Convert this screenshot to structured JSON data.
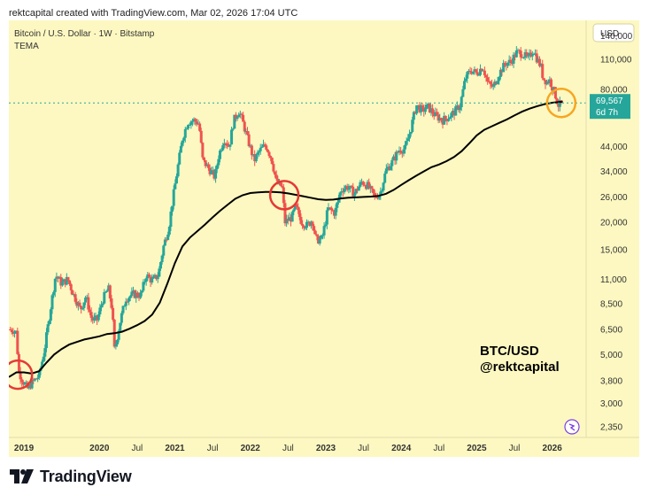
{
  "caption": "rektcapital created with TradingView.com, Mar 02, 2026 17:04 UTC",
  "logo_text": "TradingView",
  "colors": {
    "background": "#fdf8c1",
    "up": "#26a69a",
    "down": "#ef5350",
    "tema": "#000000",
    "red_circle": "#e53935",
    "orange_circle": "#f5a623",
    "price_tag": "#26a69a"
  },
  "chart_data": {
    "type": "candlestick",
    "symbol_line": "Bitcoin / U.S. Dollar · 1W · Bitstamp",
    "indicator": "TEMA",
    "currency_button": "USD",
    "watermark_lines": [
      "BTC/USD",
      "@rektcapital"
    ],
    "y_scale": "log",
    "ylim": [
      2100,
      165000
    ],
    "y_ticks": [
      140000,
      110000,
      80000,
      44000,
      34000,
      26000,
      20000,
      15000,
      11000,
      8500,
      6500,
      5000,
      3800,
      3000,
      2350
    ],
    "y_tick_labels": [
      "140,000",
      "110,000",
      "80,000",
      "44,000",
      "34,000",
      "26,000",
      "20,000",
      "15,000",
      "11,000",
      "8,500",
      "6,500",
      "5,000",
      "3,800",
      "3,000",
      "2,350"
    ],
    "xlim": [
      2018.8,
      2026.45
    ],
    "x_ticks": [
      2019.0,
      2020.0,
      2020.5,
      2021.0,
      2021.5,
      2022.0,
      2022.5,
      2023.0,
      2023.5,
      2024.0,
      2024.5,
      2025.0,
      2025.5,
      2026.0
    ],
    "x_tick_labels": [
      "2019",
      "2020",
      "Jul",
      "2021",
      "Jul",
      "2022",
      "Jul",
      "2023",
      "Jul",
      "2024",
      "Jul",
      "2025",
      "Jul",
      "2026"
    ],
    "last_price": 69567,
    "last_price_label": "69,567",
    "countdown": "6d 7h",
    "price_path": [
      [
        2018.8,
        6500
      ],
      [
        2018.87,
        6450
      ],
      [
        2018.9,
        6300
      ],
      [
        2018.93,
        4200
      ],
      [
        2018.97,
        3900
      ],
      [
        2019.0,
        3700
      ],
      [
        2019.05,
        3500
      ],
      [
        2019.1,
        3700
      ],
      [
        2019.2,
        4000
      ],
      [
        2019.27,
        5200
      ],
      [
        2019.35,
        8000
      ],
      [
        2019.42,
        11500
      ],
      [
        2019.5,
        10500
      ],
      [
        2019.58,
        11000
      ],
      [
        2019.65,
        9500
      ],
      [
        2019.75,
        8000
      ],
      [
        2019.82,
        9200
      ],
      [
        2019.9,
        7200
      ],
      [
        2019.97,
        7200
      ],
      [
        2020.05,
        9000
      ],
      [
        2020.12,
        10000
      ],
      [
        2020.17,
        8000
      ],
      [
        2020.2,
        5200
      ],
      [
        2020.28,
        7200
      ],
      [
        2020.35,
        9000
      ],
      [
        2020.45,
        9400
      ],
      [
        2020.55,
        9300
      ],
      [
        2020.62,
        11500
      ],
      [
        2020.7,
        10800
      ],
      [
        2020.78,
        11500
      ],
      [
        2020.85,
        15500
      ],
      [
        2020.92,
        19000
      ],
      [
        2020.97,
        25000
      ],
      [
        2021.03,
        34000
      ],
      [
        2021.1,
        48000
      ],
      [
        2021.17,
        57000
      ],
      [
        2021.25,
        58000
      ],
      [
        2021.32,
        56000
      ],
      [
        2021.37,
        38000
      ],
      [
        2021.45,
        35000
      ],
      [
        2021.53,
        32000
      ],
      [
        2021.58,
        40000
      ],
      [
        2021.65,
        48000
      ],
      [
        2021.72,
        44000
      ],
      [
        2021.78,
        58000
      ],
      [
        2021.85,
        64000
      ],
      [
        2021.9,
        57000
      ],
      [
        2021.97,
        47000
      ],
      [
        2022.05,
        38000
      ],
      [
        2022.12,
        42000
      ],
      [
        2022.2,
        45000
      ],
      [
        2022.28,
        39000
      ],
      [
        2022.35,
        30000
      ],
      [
        2022.42,
        29000
      ],
      [
        2022.46,
        20000
      ],
      [
        2022.55,
        21000
      ],
      [
        2022.6,
        23500
      ],
      [
        2022.68,
        20000
      ],
      [
        2022.75,
        19300
      ],
      [
        2022.82,
        20500
      ],
      [
        2022.87,
        16500
      ],
      [
        2022.95,
        16800
      ],
      [
        2023.03,
        23000
      ],
      [
        2023.12,
        22000
      ],
      [
        2023.2,
        28000
      ],
      [
        2023.28,
        29000
      ],
      [
        2023.38,
        27000
      ],
      [
        2023.48,
        30500
      ],
      [
        2023.55,
        29300
      ],
      [
        2023.65,
        26000
      ],
      [
        2023.72,
        27000
      ],
      [
        2023.8,
        34500
      ],
      [
        2023.88,
        37500
      ],
      [
        2023.97,
        42500
      ],
      [
        2024.05,
        43000
      ],
      [
        2024.12,
        52000
      ],
      [
        2024.2,
        68000
      ],
      [
        2024.28,
        64000
      ],
      [
        2024.35,
        67000
      ],
      [
        2024.45,
        61000
      ],
      [
        2024.55,
        58000
      ],
      [
        2024.62,
        60000
      ],
      [
        2024.7,
        63000
      ],
      [
        2024.78,
        68000
      ],
      [
        2024.85,
        90000
      ],
      [
        2024.92,
        98000
      ],
      [
        2025.0,
        95000
      ],
      [
        2025.08,
        102000
      ],
      [
        2025.15,
        85000
      ],
      [
        2025.22,
        82000
      ],
      [
        2025.3,
        95000
      ],
      [
        2025.38,
        105000
      ],
      [
        2025.45,
        107000
      ],
      [
        2025.53,
        118000
      ],
      [
        2025.6,
        117000
      ],
      [
        2025.68,
        110000
      ],
      [
        2025.75,
        122000
      ],
      [
        2025.8,
        110000
      ],
      [
        2025.85,
        102000
      ],
      [
        2025.88,
        90000
      ],
      [
        2025.93,
        87000
      ],
      [
        2025.97,
        88000
      ],
      [
        2026.03,
        78000
      ],
      [
        2026.08,
        68000
      ],
      [
        2026.14,
        69567
      ]
    ],
    "tema_path": [
      [
        2018.8,
        3950
      ],
      [
        2018.9,
        4150
      ],
      [
        2019.0,
        4150
      ],
      [
        2019.1,
        4100
      ],
      [
        2019.2,
        4200
      ],
      [
        2019.3,
        4600
      ],
      [
        2019.4,
        5000
      ],
      [
        2019.5,
        5300
      ],
      [
        2019.6,
        5550
      ],
      [
        2019.7,
        5700
      ],
      [
        2019.8,
        5850
      ],
      [
        2019.9,
        5950
      ],
      [
        2020.0,
        6050
      ],
      [
        2020.1,
        6200
      ],
      [
        2020.2,
        6250
      ],
      [
        2020.3,
        6350
      ],
      [
        2020.4,
        6550
      ],
      [
        2020.5,
        6800
      ],
      [
        2020.6,
        7100
      ],
      [
        2020.7,
        7600
      ],
      [
        2020.8,
        8600
      ],
      [
        2020.9,
        10500
      ],
      [
        2021.0,
        13000
      ],
      [
        2021.1,
        15500
      ],
      [
        2021.2,
        17000
      ],
      [
        2021.3,
        18200
      ],
      [
        2021.4,
        19500
      ],
      [
        2021.5,
        21000
      ],
      [
        2021.6,
        22500
      ],
      [
        2021.7,
        24000
      ],
      [
        2021.8,
        25500
      ],
      [
        2021.9,
        26500
      ],
      [
        2022.0,
        27100
      ],
      [
        2022.1,
        27300
      ],
      [
        2022.2,
        27400
      ],
      [
        2022.3,
        27400
      ],
      [
        2022.4,
        27300
      ],
      [
        2022.5,
        27000
      ],
      [
        2022.6,
        26600
      ],
      [
        2022.7,
        26200
      ],
      [
        2022.8,
        25800
      ],
      [
        2022.9,
        25400
      ],
      [
        2023.0,
        25200
      ],
      [
        2023.1,
        25300
      ],
      [
        2023.2,
        25600
      ],
      [
        2023.3,
        25800
      ],
      [
        2023.4,
        25900
      ],
      [
        2023.5,
        26000
      ],
      [
        2023.6,
        26100
      ],
      [
        2023.7,
        26300
      ],
      [
        2023.8,
        26900
      ],
      [
        2023.9,
        28000
      ],
      [
        2024.0,
        29500
      ],
      [
        2024.1,
        31000
      ],
      [
        2024.2,
        32500
      ],
      [
        2024.3,
        34000
      ],
      [
        2024.4,
        35500
      ],
      [
        2024.5,
        36500
      ],
      [
        2024.6,
        37800
      ],
      [
        2024.7,
        39500
      ],
      [
        2024.8,
        42000
      ],
      [
        2024.9,
        45500
      ],
      [
        2025.0,
        49500
      ],
      [
        2025.1,
        52500
      ],
      [
        2025.2,
        54500
      ],
      [
        2025.3,
        56500
      ],
      [
        2025.4,
        58500
      ],
      [
        2025.5,
        61000
      ],
      [
        2025.6,
        63500
      ],
      [
        2025.7,
        65500
      ],
      [
        2025.8,
        67200
      ],
      [
        2025.9,
        68700
      ],
      [
        2026.0,
        69700
      ],
      [
        2026.1,
        70300
      ],
      [
        2026.14,
        70400
      ]
    ],
    "annotations": [
      {
        "kind": "circle",
        "color": "red",
        "x": 2018.92,
        "y": 4050
      },
      {
        "kind": "circle",
        "color": "red",
        "x": 2022.45,
        "y": 26500
      },
      {
        "kind": "circle",
        "color": "orange",
        "x": 2026.12,
        "y": 69567
      }
    ]
  }
}
